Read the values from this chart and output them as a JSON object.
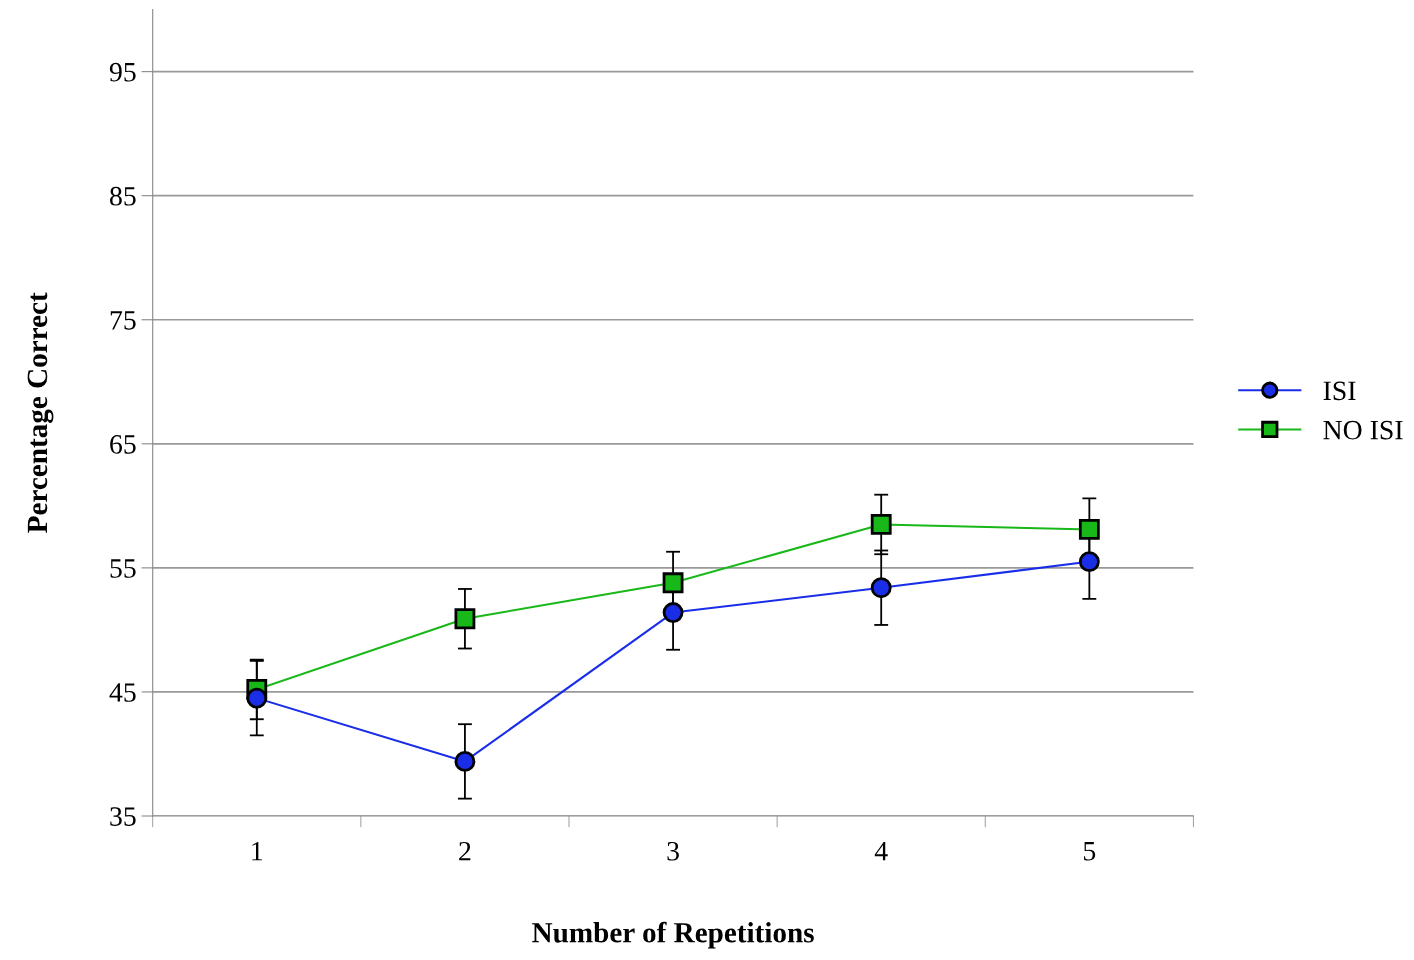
{
  "chart_data": {
    "type": "line",
    "xlabel": "Number of Repetitions",
    "ylabel": "Percentage Correct",
    "categories": [
      "1",
      "2",
      "3",
      "4",
      "5"
    ],
    "series": [
      {
        "name": "ISI",
        "color": "#1a2ee8",
        "marker": "circle",
        "values": [
          44.5,
          39.4,
          51.4,
          53.4,
          55.5
        ],
        "errors": [
          3,
          3,
          3,
          3,
          3
        ]
      },
      {
        "name": "NO ISI",
        "color": "#18b818",
        "marker": "square",
        "values": [
          45.2,
          50.9,
          53.8,
          58.5,
          58.1
        ],
        "errors": [
          2.4,
          2.4,
          2.5,
          2.4,
          2.5
        ]
      }
    ],
    "ylim": [
      35,
      100
    ],
    "yticks": [
      35,
      45,
      55,
      65,
      75,
      85,
      95
    ],
    "grid": "y",
    "legend": "right",
    "line_style": "solid"
  }
}
